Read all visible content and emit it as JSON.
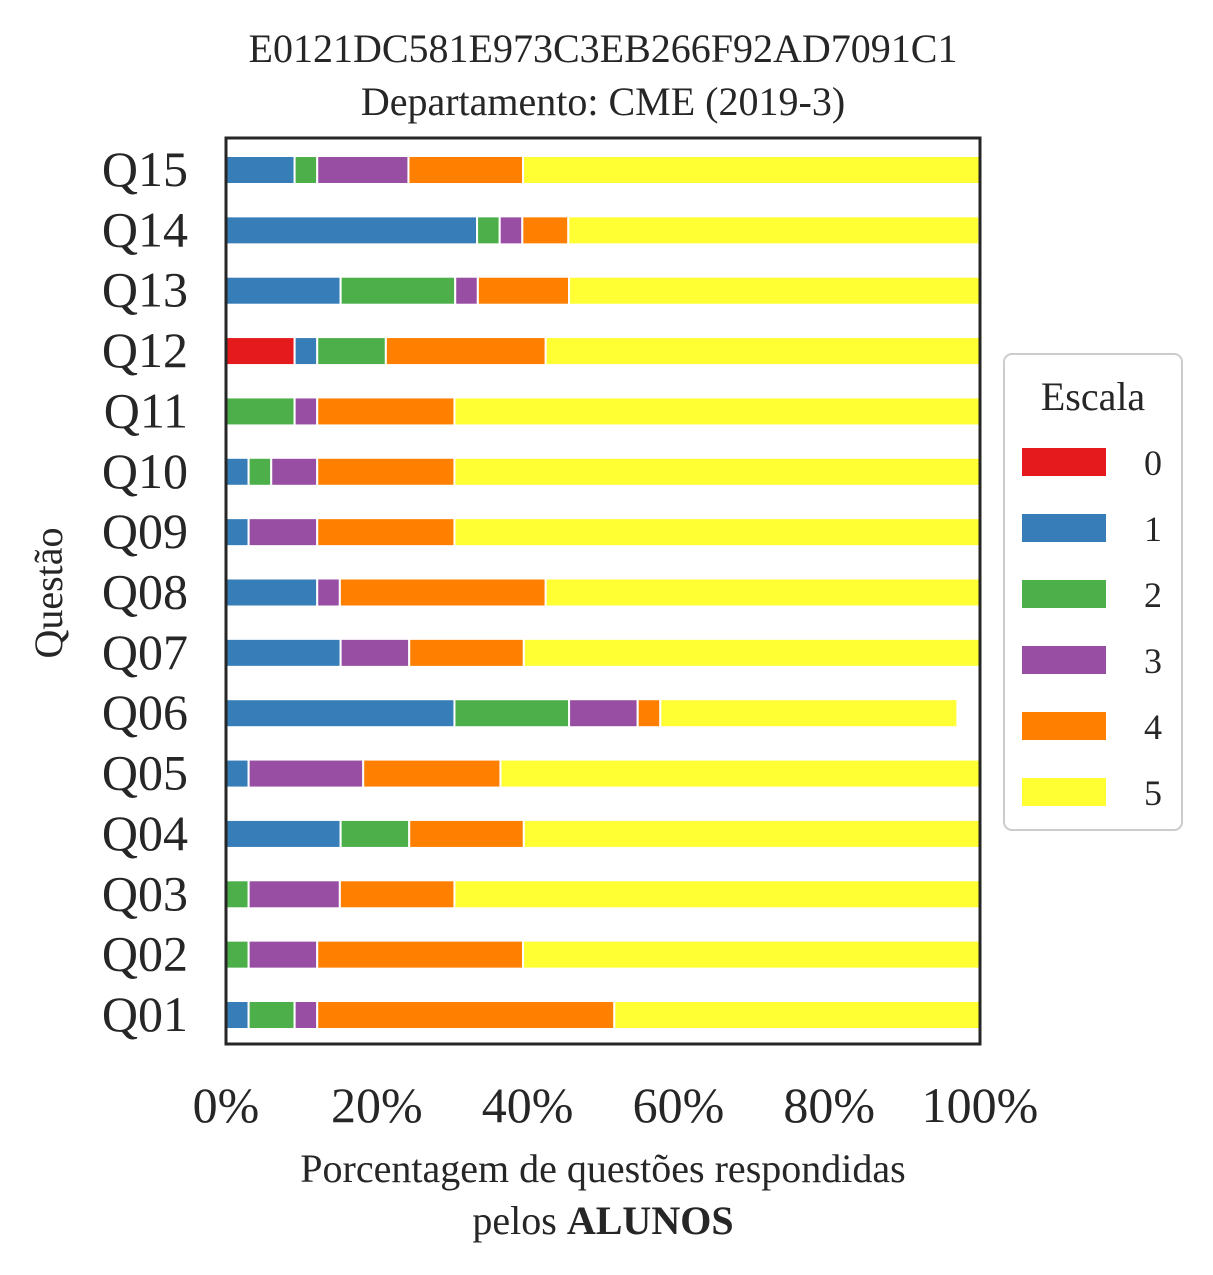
{
  "chart_data": {
    "type": "bar",
    "orientation": "horizontal",
    "stacked": true,
    "title": "E0121DC581E973C3EB266F92AD7091C1",
    "subtitle": "Departamento: CME (2019-3)",
    "ylabel": "Questão",
    "xlabel_line1": "Porcentagem de questões respondidas",
    "xlabel_line2_prefix": "pelos ",
    "xlabel_line2_bold": "ALUNOS",
    "xlim": [
      0,
      100
    ],
    "x_ticks": [
      0,
      20,
      40,
      60,
      80,
      100
    ],
    "x_tick_labels": [
      "0%",
      "20%",
      "40%",
      "60%",
      "80%",
      "100%"
    ],
    "grid": false,
    "legend": {
      "title": "Escala",
      "placement": "center-right, outside plot"
    },
    "categories": [
      "Q01",
      "Q02",
      "Q03",
      "Q04",
      "Q05",
      "Q06",
      "Q07",
      "Q08",
      "Q09",
      "Q10",
      "Q11",
      "Q12",
      "Q13",
      "Q14",
      "Q15"
    ],
    "series": [
      {
        "name": "0",
        "color": "#e41a1c",
        "values": [
          0,
          0,
          0,
          0,
          0,
          0,
          0,
          0,
          0,
          0,
          0,
          9.1,
          0,
          0,
          0
        ]
      },
      {
        "name": "1",
        "color": "#377eb8",
        "values": [
          3,
          0,
          0,
          15.2,
          3,
          30.3,
          15.2,
          12.1,
          3,
          3,
          0,
          3,
          15.2,
          33.3,
          9.1
        ]
      },
      {
        "name": "2",
        "color": "#4daf4a",
        "values": [
          6.1,
          3,
          3,
          9.1,
          0,
          15.2,
          0,
          0,
          0,
          3,
          9.1,
          9.1,
          15.2,
          3,
          3
        ]
      },
      {
        "name": "3",
        "color": "#984ea3",
        "values": [
          3,
          9.1,
          12.1,
          0,
          15.2,
          9.1,
          9.1,
          3,
          9.1,
          6.1,
          3,
          0,
          3,
          3,
          12.1
        ]
      },
      {
        "name": "4",
        "color": "#ff7f00",
        "values": [
          39.4,
          27.3,
          15.2,
          15.2,
          18.2,
          3,
          15.2,
          27.3,
          18.2,
          18.2,
          18.2,
          21.2,
          12.1,
          6.1,
          15.2
        ]
      },
      {
        "name": "5",
        "color": "#ffff33",
        "values": [
          48.5,
          60.6,
          69.7,
          60.6,
          63.6,
          39.4,
          60.6,
          57.6,
          69.7,
          69.7,
          69.7,
          57.6,
          54.5,
          54.5,
          60.6
        ]
      }
    ]
  }
}
